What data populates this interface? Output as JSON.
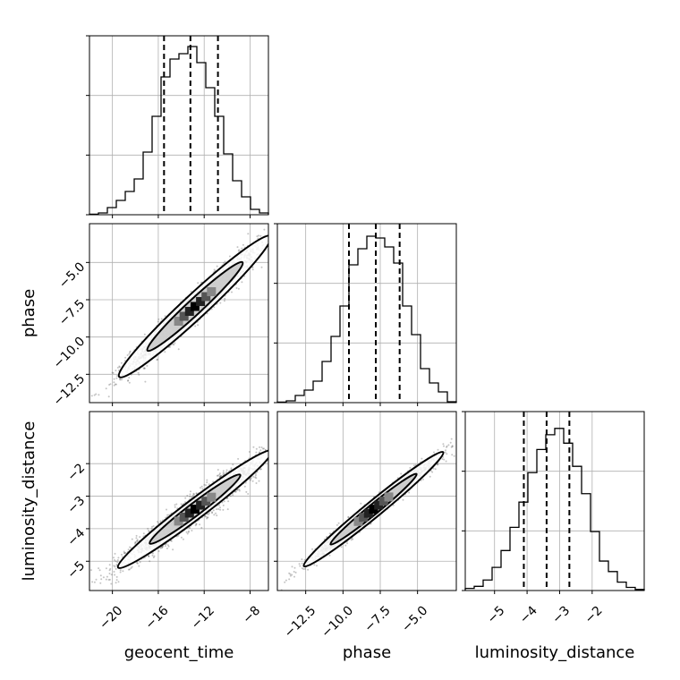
{
  "chart_data": {
    "type": "corner",
    "parameters": [
      "geocent_time",
      "phase",
      "luminosity_distance"
    ],
    "xlabels": [
      "geocent_time",
      "phase",
      "luminosity_distance"
    ],
    "ylabels": [
      "",
      "phase",
      "luminosity_distance"
    ],
    "grid": true,
    "ranges": {
      "geocent_time": [
        -22.0,
        -6.4
      ],
      "phase": [
        -14.4,
        -2.4
      ],
      "luminosity_distance": [
        -5.9,
        -0.4
      ]
    },
    "ticks": {
      "geocent_time": [
        -20,
        -16,
        -12,
        -8
      ],
      "phase": [
        -12.5,
        -10.0,
        -7.5,
        -5.0
      ],
      "luminosity_distance": [
        -5,
        -4,
        -3,
        -2
      ]
    },
    "tick_labels": {
      "geocent_time": [
        "−20",
        "−16",
        "−12",
        "−8"
      ],
      "phase": [
        "−12.5",
        "−10.0",
        "−7.5",
        "−5.0"
      ],
      "luminosity_distance": [
        "−5",
        "−4",
        "−3",
        "−2"
      ]
    },
    "quantiles": {
      "geocent_time": [
        -15.5,
        -13.2,
        -10.8
      ],
      "phase": [
        -9.6,
        -7.8,
        -6.2
      ],
      "luminosity_distance": [
        -4.1,
        -3.4,
        -2.7
      ]
    },
    "histograms": {
      "geocent_time": {
        "edges": [
          -22.0,
          -21.22,
          -20.44,
          -19.66,
          -18.88,
          -18.1,
          -17.32,
          -16.54,
          -15.76,
          -14.98,
          -14.2,
          -13.42,
          -12.64,
          -11.86,
          -11.08,
          -10.3,
          -9.52,
          -8.74,
          -7.96,
          -7.18,
          -6.4
        ],
        "counts": [
          0.3,
          1.0,
          4.0,
          8.0,
          13.0,
          20.0,
          35.0,
          55.0,
          77.0,
          87.0,
          90.0,
          94.0,
          85.0,
          71.0,
          55.0,
          34.0,
          19.0,
          10.0,
          3.0,
          1.0
        ],
        "ymax": 100
      },
      "phase": {
        "edges": [
          -14.4,
          -13.8,
          -13.2,
          -12.6,
          -12.0,
          -11.4,
          -10.8,
          -10.2,
          -9.6,
          -9.0,
          -8.4,
          -7.8,
          -7.2,
          -6.6,
          -6.0,
          -5.4,
          -4.8,
          -4.2,
          -3.6,
          -3.0,
          -2.4
        ],
        "counts": [
          0.3,
          1.0,
          4.0,
          7.0,
          12.0,
          23.0,
          37.0,
          54.0,
          77.0,
          86.0,
          93.0,
          92.0,
          87.0,
          78.0,
          54.0,
          38.0,
          19.0,
          11.0,
          6.0,
          0.5
        ],
        "ymax": 100
      },
      "luminosity_distance": {
        "edges": [
          -5.9,
          -5.625,
          -5.35,
          -5.075,
          -4.8,
          -4.525,
          -4.25,
          -3.975,
          -3.7,
          -3.425,
          -3.15,
          -2.875,
          -2.6,
          -2.325,
          -2.05,
          -1.775,
          -1.5,
          -1.225,
          -0.95,
          -0.675,
          -0.4
        ],
        "counts": [
          1.0,
          2.0,
          5.0,
          11.0,
          19.0,
          30.0,
          42.0,
          56.0,
          67.0,
          74.0,
          77.0,
          70.0,
          59.0,
          46.0,
          28.0,
          14.0,
          9.0,
          4.0,
          1.5,
          0.5
        ],
        "ymax": 85
      }
    },
    "scatter_2d": [
      {
        "x_param": "geocent_time",
        "y_param": "phase",
        "mean": [
          -12.8,
          -7.95
        ],
        "sigma": [
          2.8,
          2.0
        ],
        "correlation": 0.97,
        "contours": [
          {
            "level": 0.39,
            "fill": "#c8c8c8",
            "halfwidth_x": 4.2,
            "halfwidth_y": 0.9
          },
          {
            "level": 0.86,
            "fill": "#ffffff",
            "halfwidth_x": 6.7,
            "halfwidth_y": 1.45
          }
        ]
      },
      {
        "x_param": "geocent_time",
        "y_param": "luminosity_distance",
        "mean": [
          -12.8,
          -3.4
        ],
        "sigma": [
          2.8,
          0.75
        ],
        "correlation": 0.96,
        "contours": [
          {
            "level": 0.39,
            "fill": "#c8c8c8",
            "halfwidth_x": 4.0,
            "halfwidth_y": 0.35
          },
          {
            "level": 0.86,
            "fill": "#ffffff",
            "halfwidth_x": 6.8,
            "halfwidth_y": 0.55
          }
        ]
      },
      {
        "x_param": "phase",
        "y_param": "luminosity_distance",
        "mean": [
          -7.95,
          -3.4
        ],
        "sigma": [
          2.0,
          0.75
        ],
        "correlation": 0.985,
        "contours": [
          {
            "level": 0.39,
            "fill": "#c8c8c8",
            "halfwidth_x": 2.9,
            "halfwidth_y": 0.28
          },
          {
            "level": 0.86,
            "fill": "#ffffff",
            "halfwidth_x": 4.7,
            "halfwidth_y": 0.45
          }
        ]
      }
    ]
  }
}
